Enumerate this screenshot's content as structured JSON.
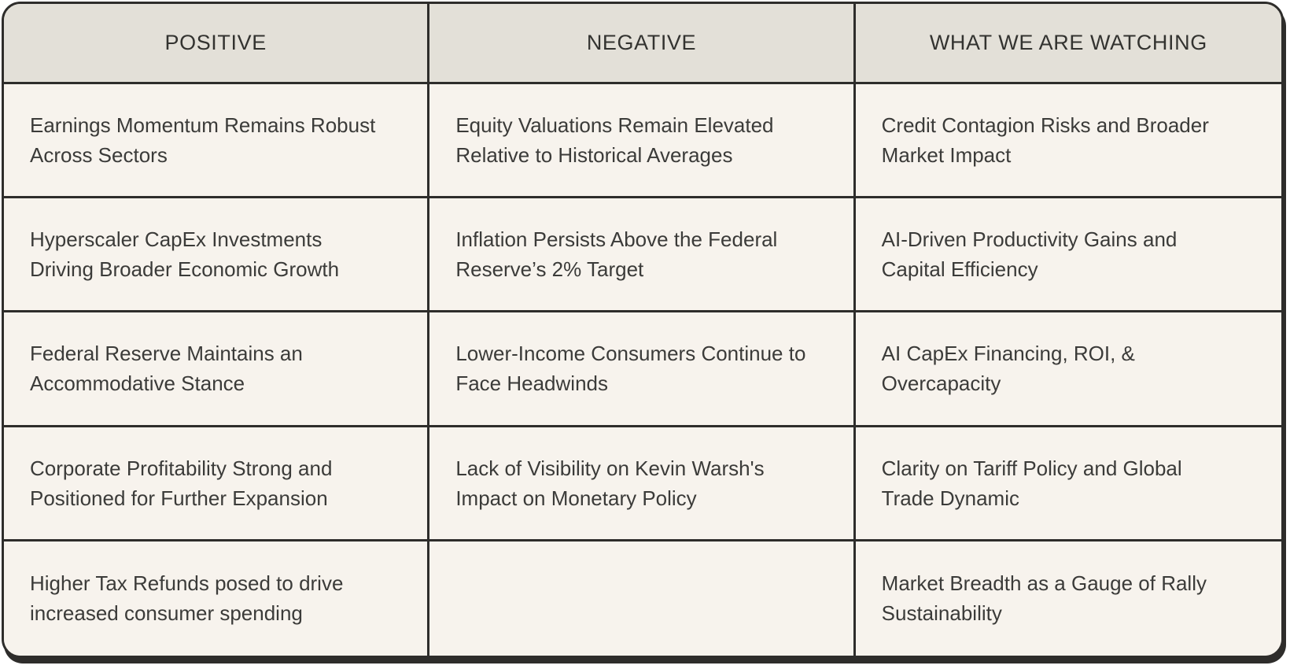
{
  "colors": {
    "header_bg": "#e3e0d8",
    "cell_bg": "#f7f3ed",
    "border": "#2e2d2b",
    "text": "#3b3b39"
  },
  "table": {
    "headers": [
      "POSITIVE",
      "NEGATIVE",
      "WHAT WE ARE WATCHING"
    ],
    "rows": [
      [
        "Earnings Momentum Remains Robust Across Sectors",
        "Equity Valuations Remain Elevated Relative to Historical Averages",
        "Credit Contagion Risks and Broader Market Impact"
      ],
      [
        "Hyperscaler CapEx Investments Driving Broader Economic Growth",
        "Inflation Persists Above the Federal Reserve’s 2% Target",
        "AI-Driven Productivity Gains and Capital Efficiency"
      ],
      [
        "Federal Reserve Maintains an Accommodative Stance",
        "Lower-Income Consumers Continue to Face Headwinds",
        "AI CapEx Financing, ROI, & Overcapacity"
      ],
      [
        "Corporate Profitability Strong and Positioned for Further Expansion",
        "Lack of Visibility on Kevin Warsh's Impact on Monetary Policy",
        "Clarity on Tariff Policy and Global Trade Dynamic"
      ],
      [
        "Higher Tax Refunds posed to drive increased consumer spending",
        "",
        "Market Breadth as a Gauge of Rally Sustainability"
      ]
    ]
  }
}
